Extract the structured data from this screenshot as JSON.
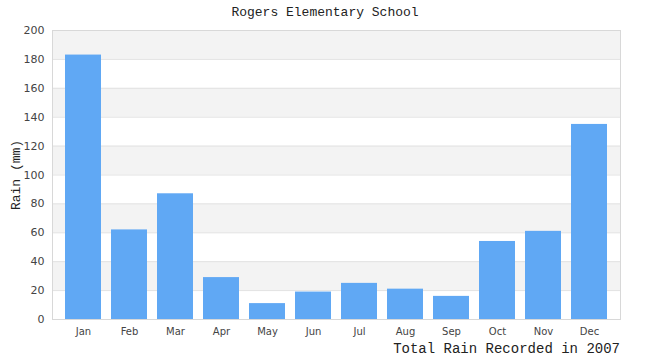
{
  "chart_data": {
    "type": "bar",
    "title": "Rogers Elementary School",
    "caption": "Total Rain Recorded in 2007",
    "y_label": "Rain (mm)",
    "categories": [
      "Jan",
      "Feb",
      "Mar",
      "Apr",
      "May",
      "Jun",
      "Jul",
      "Aug",
      "Sep",
      "Oct",
      "Nov",
      "Dec"
    ],
    "values": [
      183,
      62,
      87,
      29,
      11,
      19,
      25,
      21,
      16,
      54,
      61,
      135
    ],
    "color": "#60a8f4",
    "ylim": [
      0,
      200
    ],
    "yticks": [
      0,
      20,
      40,
      60,
      80,
      100,
      120,
      140,
      160,
      180,
      200
    ],
    "grid": true
  }
}
